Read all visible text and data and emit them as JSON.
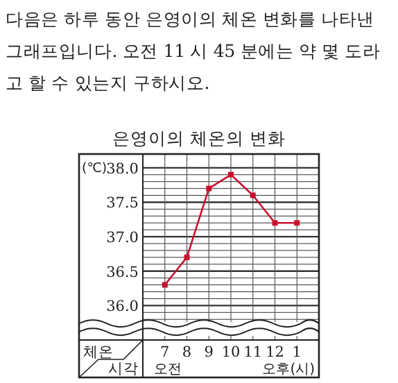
{
  "chart_data": {
    "type": "line",
    "title": "은영이의 체온의 변화",
    "xlabel": "시각",
    "ylabel": "체온",
    "annotations": [
      "다음은 하루 동안 은영이의 체온 변화를 나타낸 그래프입니다. 오전 11 시 45 분에는 약 몇 도라고 할 수 있는지 구하시오.",
      "(℃)",
      "오전",
      "오후(시)"
    ],
    "categories": [
      "7",
      "8",
      "9",
      "10",
      "11",
      "12",
      "1"
    ],
    "series": [
      {
        "color": "#c8102e",
        "values": [
          36.3,
          36.7,
          37.7,
          37.9,
          37.6,
          37.2,
          37.2
        ]
      }
    ],
    "ylim": [
      35.5,
      38.2
    ],
    "yticks": [
      {
        "value": 35.8,
        "label": null
      },
      {
        "value": 35.9,
        "label": null
      },
      {
        "value": 36.0,
        "label": "36.0"
      },
      {
        "value": 36.1,
        "label": null
      },
      {
        "value": 36.2,
        "label": null
      },
      {
        "value": 36.3,
        "label": null
      },
      {
        "value": 36.4,
        "label": null
      },
      {
        "value": 36.5,
        "label": "36.5"
      },
      {
        "value": 36.6,
        "label": null
      },
      {
        "value": 36.7,
        "label": null
      },
      {
        "value": 36.8,
        "label": null
      },
      {
        "value": 36.9,
        "label": null
      },
      {
        "value": 37.0,
        "label": "37.0"
      },
      {
        "value": 37.1,
        "label": null
      },
      {
        "value": 37.2,
        "label": null
      },
      {
        "value": 37.3,
        "label": null
      },
      {
        "value": 37.4,
        "label": null
      },
      {
        "value": 37.5,
        "label": "37.5"
      },
      {
        "value": 37.6,
        "label": null
      },
      {
        "value": 37.7,
        "label": null
      },
      {
        "value": 37.8,
        "label": null
      },
      {
        "value": 37.9,
        "label": null
      },
      {
        "value": 38.0,
        "label": "38.0"
      }
    ],
    "grid": true,
    "marker": "square",
    "line_style": "solid"
  }
}
